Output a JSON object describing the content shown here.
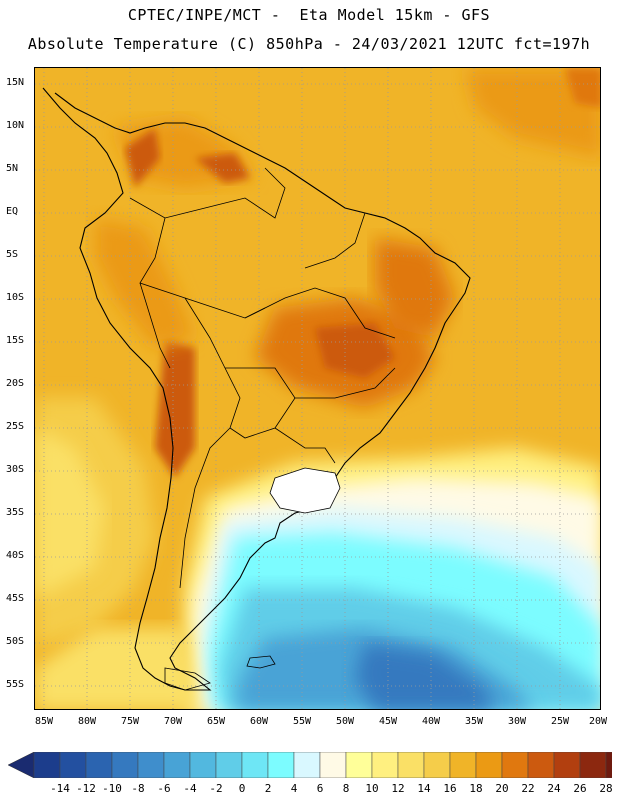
{
  "header": {
    "line1": "CPTEC/INPE/MCT -  Eta Model 15km - GFS",
    "line2": "Absolute Temperature (C) 850hPa - 24/03/2021 12UTC fct=197h"
  },
  "map": {
    "lat_labels": [
      "15N",
      "10N",
      "5N",
      "EQ",
      "5S",
      "10S",
      "15S",
      "20S",
      "25S",
      "30S",
      "35S",
      "40S",
      "45S",
      "50S",
      "55S"
    ],
    "lon_labels": [
      "85W",
      "80W",
      "75W",
      "70W",
      "65W",
      "60W",
      "55W",
      "50W",
      "45W",
      "40W",
      "35W",
      "30W",
      "25W",
      "20W"
    ]
  },
  "legend": {
    "labels": [
      "-14",
      "-12",
      "-10",
      "-8",
      "-6",
      "-4",
      "-2",
      "0",
      "2",
      "4",
      "6",
      "8",
      "10",
      "12",
      "14",
      "16",
      "18",
      "20",
      "22",
      "24",
      "26",
      "28"
    ],
    "colors": [
      "#1c3d8c",
      "#2350a0",
      "#2b64b0",
      "#3579bf",
      "#3f8ecc",
      "#48a3d6",
      "#52b8df",
      "#60cde8",
      "#6ee6f5",
      "#7cfcff",
      "#d9f8ff",
      "#fffae6",
      "#ffff99",
      "#fff080",
      "#fae066",
      "#f5cd4a",
      "#f0b428",
      "#eb9a14",
      "#e0780f",
      "#cc5a0f",
      "#b23f0f",
      "#8c280f",
      "#6e1a0f"
    ],
    "low_arrow_color": "#1a2b70",
    "high_arrow_color": "#5a0f14"
  }
}
